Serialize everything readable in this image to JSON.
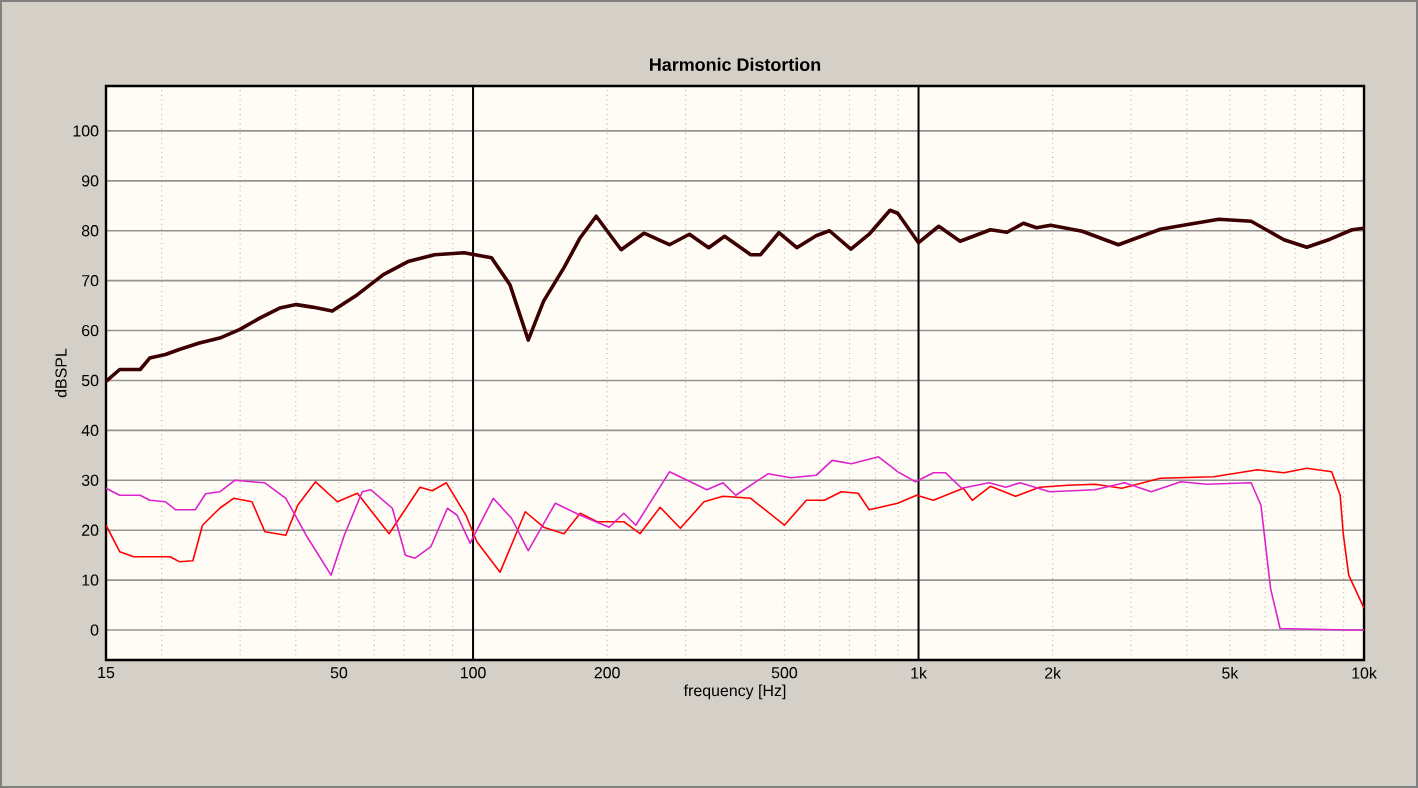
{
  "chart_data": {
    "type": "line",
    "title": "Harmonic Distortion",
    "xlabel": "frequency [Hz]",
    "ylabel": "dBSPL",
    "log": "x",
    "grid": true,
    "marker": "none",
    "line_style": "solid",
    "xlim": [
      15,
      10000
    ],
    "ylim": [
      -6,
      109
    ],
    "xticks": [
      15,
      50,
      100,
      200,
      500,
      {
        "value": 1000,
        "label": "1k"
      },
      {
        "value": 2000,
        "label": "2k"
      },
      {
        "value": 5000,
        "label": "5k"
      },
      {
        "value": 10000,
        "label": "10k"
      }
    ],
    "yticks": [
      0,
      10,
      20,
      30,
      40,
      50,
      60,
      70,
      80,
      90,
      100
    ],
    "series": [
      {
        "color": "#3c0000",
        "x": [
          15,
          16.1,
          17.9,
          18.8,
          20.4,
          21.9,
          24.3,
          27,
          29.9,
          33.2,
          36.8,
          40.1,
          43.6,
          48.3,
          55,
          62.9,
          71.8,
          82,
          95.5,
          110,
          121,
          133,
          144,
          160,
          174,
          189,
          215,
          242,
          276,
          306,
          338,
          367,
          420,
          442,
          486,
          533,
          589,
          631,
          705,
          775,
          863,
          898,
          1000,
          1110,
          1240,
          1450,
          1580,
          1720,
          1840,
          1980,
          2330,
          2810,
          3490,
          3990,
          4720,
          5580,
          6610,
          7440,
          8390,
          9400,
          10000
        ],
        "values": [
          49.8,
          52.2,
          52.2,
          54.5,
          55.2,
          56.2,
          57.5,
          58.5,
          60.2,
          62.5,
          64.5,
          65.2,
          64.7,
          63.9,
          67.2,
          71.2,
          73.9,
          75.2,
          75.6,
          74.6,
          69.2,
          58.1,
          65.9,
          72.6,
          78.6,
          82.9,
          76.2,
          79.5,
          77.2,
          79.3,
          76.6,
          78.9,
          75.2,
          75.2,
          79.6,
          76.6,
          79,
          80,
          76.3,
          79.3,
          84.1,
          83.5,
          77.6,
          80.9,
          77.9,
          80.2,
          79.7,
          81.5,
          80.6,
          81.1,
          79.9,
          77.2,
          80.3,
          81.2,
          82.3,
          81.9,
          78.2,
          76.7,
          78.3,
          80.2,
          80.5
        ]
      },
      {
        "color": "#ff0000",
        "x": [
          15,
          16.1,
          17.3,
          20.9,
          21.9,
          23.5,
          24.7,
          27,
          29,
          31.9,
          34.1,
          38,
          40.4,
          44.3,
          49.6,
          55,
          64.8,
          76,
          81,
          87.1,
          96.4,
          102,
          115,
          131,
          144,
          160,
          174,
          190,
          218,
          237,
          263,
          292,
          330,
          364,
          420,
          500,
          560,
          615,
          671,
          732,
          775,
          898,
          990,
          1080,
          1260,
          1320,
          1450,
          1650,
          1870,
          2170,
          2490,
          2860,
          3490,
          4600,
          5770,
          6610,
          7440,
          8460,
          8840,
          8990,
          9240,
          10000
        ],
        "values": [
          21,
          15.7,
          14.7,
          14.7,
          13.7,
          13.9,
          21,
          24.4,
          26.4,
          25.7,
          19.7,
          19,
          25,
          29.7,
          25.7,
          27.4,
          19.3,
          28.6,
          27.9,
          29.5,
          23,
          17.7,
          11.6,
          23.7,
          20.6,
          19.3,
          23.4,
          21.7,
          21.7,
          19.3,
          24.6,
          20.4,
          25.7,
          26.8,
          26.4,
          21,
          26,
          26,
          27.7,
          27.4,
          24.1,
          25.4,
          27,
          26,
          28.4,
          26,
          28.8,
          26.8,
          28.6,
          29,
          29.2,
          28.4,
          30.4,
          30.7,
          32.1,
          31.5,
          32.4,
          31.7,
          27,
          19,
          11,
          4.4
        ]
      },
      {
        "color": "#dd22cc",
        "x": [
          15,
          16.1,
          17.9,
          18.8,
          20.4,
          21.5,
          23.8,
          25.1,
          27,
          29.2,
          31.9,
          34.1,
          38,
          42.2,
          48,
          51.4,
          56.4,
          59,
          65.9,
          70.5,
          74.1,
          80.4,
          87.6,
          92.1,
          98.5,
          111,
          122,
          133,
          153,
          174,
          202,
          218,
          232,
          276,
          335,
          364,
          389,
          459,
          517,
          589,
          640,
          707,
          813,
          899,
          984,
          1080,
          1150,
          1250,
          1440,
          1570,
          1690,
          1970,
          2490,
          2900,
          3330,
          3880,
          4440,
          5580,
          5870,
          6170,
          6480,
          9210,
          10000
        ],
        "values": [
          28.4,
          27,
          27,
          26,
          25.7,
          24.1,
          24.1,
          27.3,
          27.7,
          30,
          29.7,
          29.5,
          26.4,
          19,
          11,
          19,
          27.7,
          28.1,
          24.4,
          15,
          14.4,
          16.7,
          24.4,
          23,
          17.4,
          26.4,
          22.4,
          15.9,
          25.4,
          23,
          20.6,
          23.4,
          21,
          31.7,
          28.1,
          29.5,
          27,
          31.3,
          30.5,
          31,
          34,
          33.3,
          34.7,
          31.7,
          29.7,
          31.5,
          31.5,
          28.4,
          29.5,
          28.6,
          29.5,
          27.7,
          28.1,
          29.5,
          27.7,
          29.7,
          29.2,
          29.5,
          25,
          8.3,
          0.3,
          0,
          0
        ]
      }
    ]
  }
}
